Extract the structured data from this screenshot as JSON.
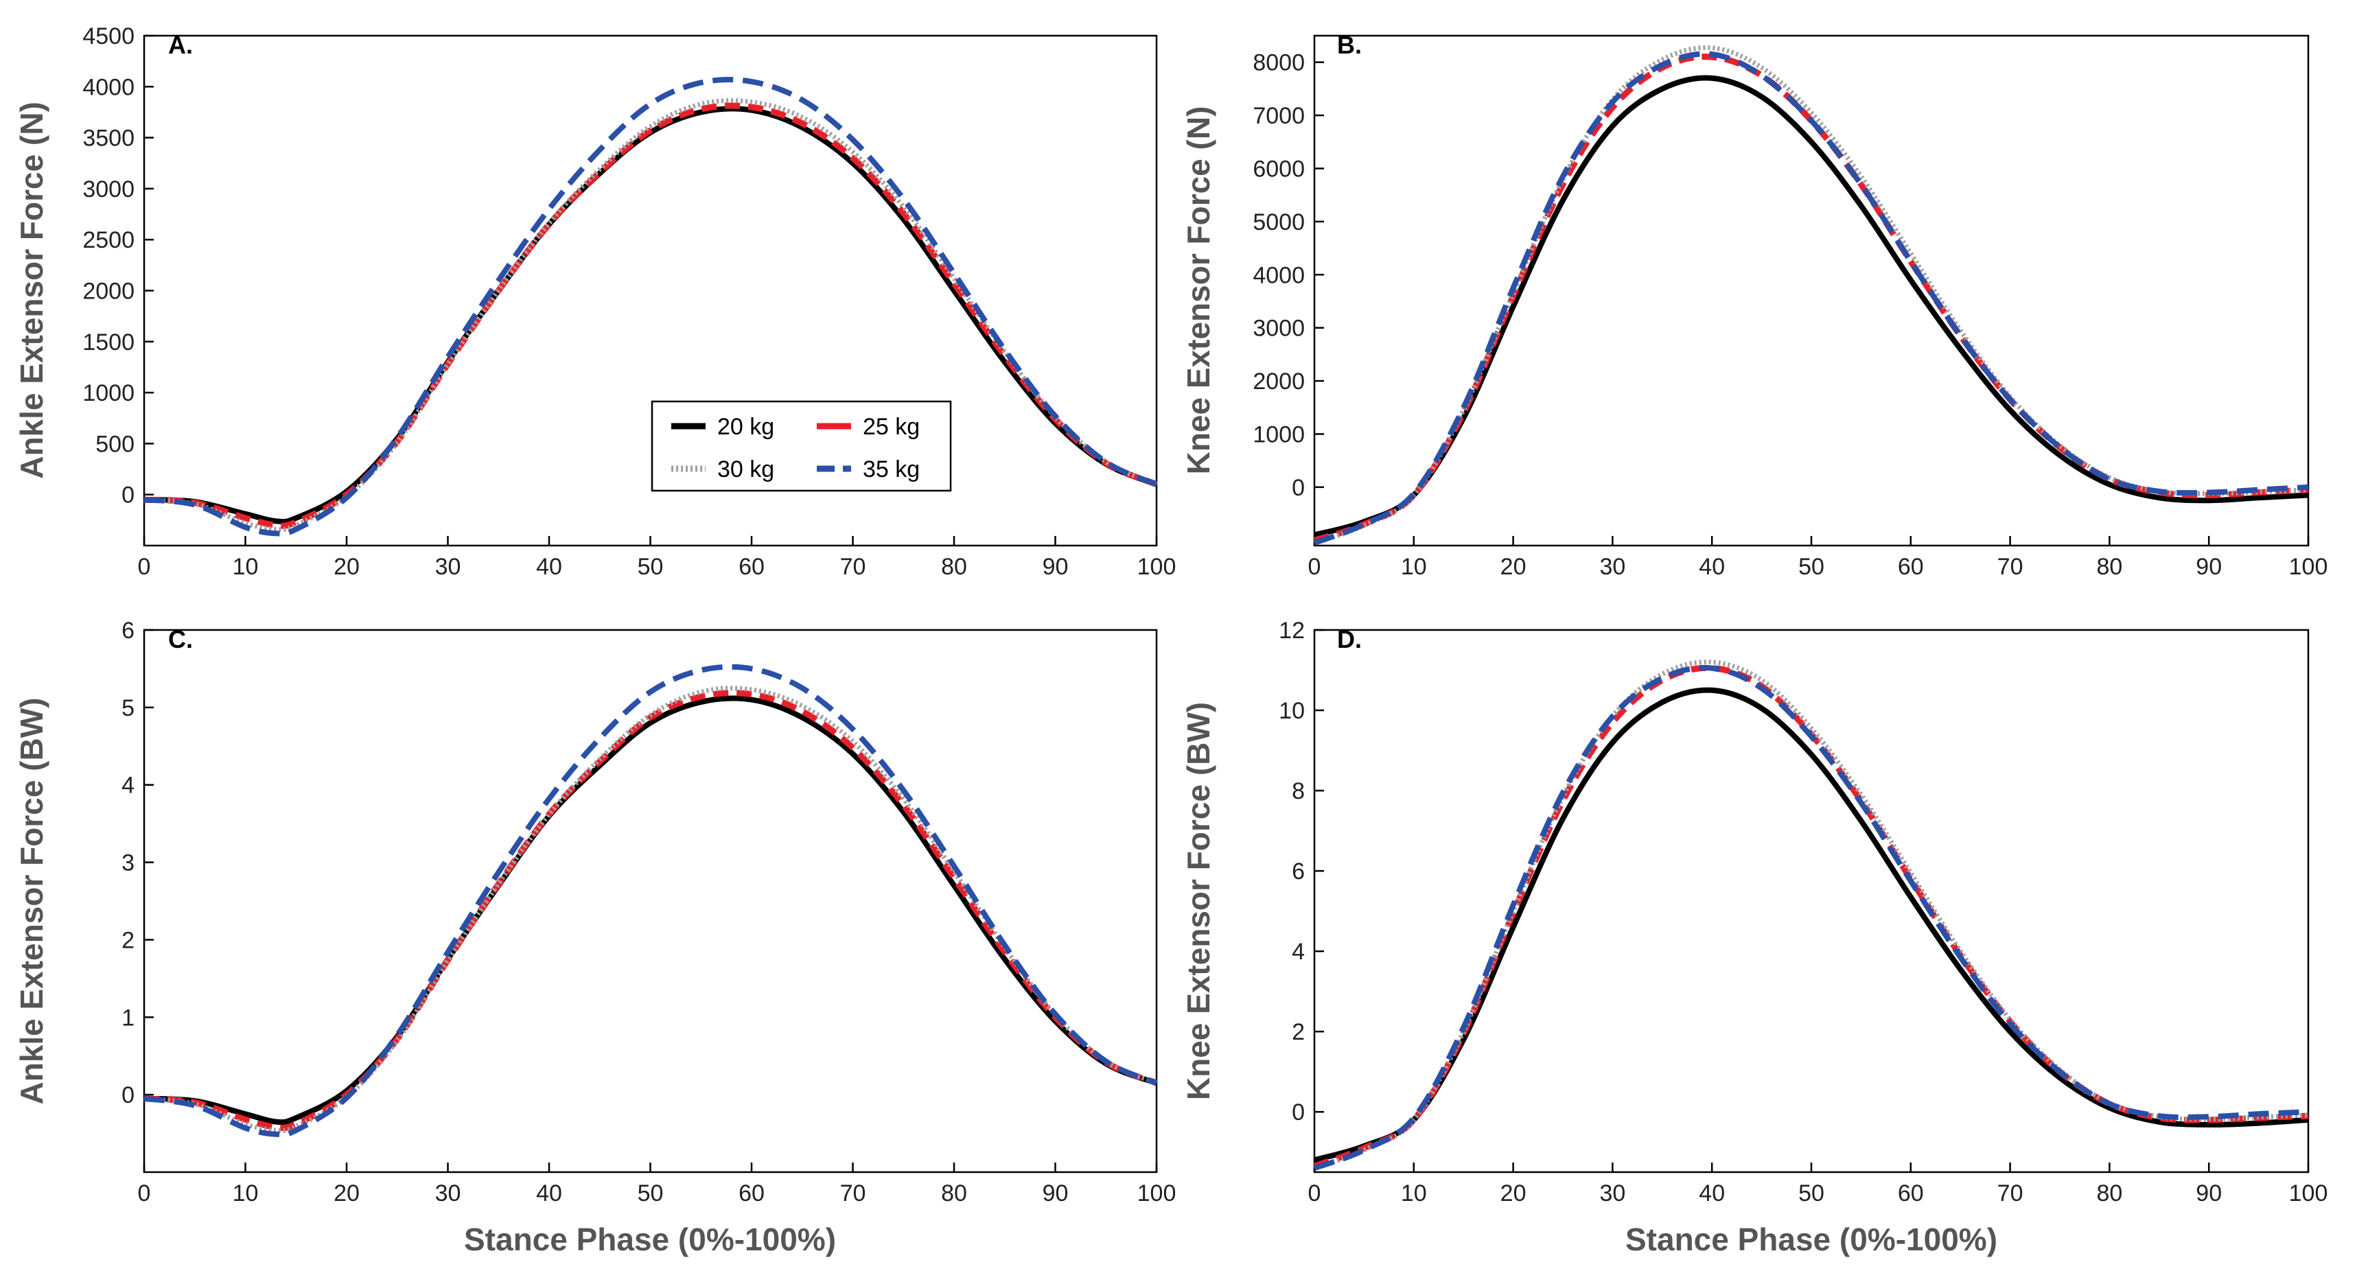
{
  "colors": {
    "20 kg": "#000000",
    "25 kg": "#e8202a",
    "30 kg": "#a0a0a0",
    "35 kg": "#2a50a8"
  },
  "chart_data": [
    {
      "type": "line",
      "panel": "A.",
      "xlabel": "",
      "ylabel": "Ankle Extensor Force (N)",
      "xlim": [
        0,
        100
      ],
      "ylim": [
        -500,
        4500
      ],
      "xticks": [
        0,
        10,
        20,
        30,
        40,
        50,
        60,
        70,
        80,
        90,
        100
      ],
      "yticks": [
        0,
        500,
        1000,
        1500,
        2000,
        2500,
        3000,
        3500,
        4000,
        4500
      ],
      "legend": [
        {
          "label": "20 kg",
          "series": "20 kg"
        },
        {
          "label": "25 kg",
          "series": "25 kg"
        },
        {
          "label": "30 kg",
          "series": "30 kg"
        },
        {
          "label": "35 kg",
          "series": "35 kg"
        }
      ],
      "x": [
        0,
        5,
        10,
        13,
        15,
        20,
        25,
        30,
        35,
        40,
        45,
        50,
        55,
        60,
        65,
        70,
        75,
        80,
        85,
        90,
        95,
        100
      ],
      "series": [
        {
          "name": "20 kg",
          "values": [
            -50,
            -70,
            -190,
            -260,
            -230,
            30,
            550,
            1300,
            2000,
            2650,
            3150,
            3550,
            3750,
            3770,
            3600,
            3250,
            2700,
            2000,
            1300,
            700,
            300,
            100
          ]
        },
        {
          "name": "25 kg",
          "values": [
            -50,
            -80,
            -230,
            -300,
            -270,
            0,
            520,
            1280,
            2000,
            2650,
            3160,
            3570,
            3780,
            3800,
            3640,
            3300,
            2760,
            2070,
            1360,
            740,
            310,
            100
          ]
        },
        {
          "name": "30 kg",
          "values": [
            -50,
            -90,
            -280,
            -340,
            -300,
            -20,
            510,
            1280,
            2000,
            2660,
            3190,
            3610,
            3830,
            3850,
            3700,
            3360,
            2820,
            2120,
            1400,
            760,
            320,
            100
          ]
        },
        {
          "name": "35 kg",
          "values": [
            -50,
            -100,
            -320,
            -380,
            -340,
            -30,
            560,
            1350,
            2100,
            2800,
            3380,
            3830,
            4040,
            4050,
            3870,
            3480,
            2900,
            2170,
            1420,
            770,
            320,
            100
          ]
        }
      ]
    },
    {
      "type": "line",
      "panel": "B.",
      "xlabel": "",
      "ylabel": "Knee Extensor Force (N)",
      "xlim": [
        0,
        100
      ],
      "ylim": [
        -1100,
        8500
      ],
      "xticks": [
        0,
        10,
        20,
        30,
        40,
        50,
        60,
        70,
        80,
        90,
        100
      ],
      "yticks": [
        0,
        1000,
        2000,
        3000,
        4000,
        5000,
        6000,
        7000,
        8000
      ],
      "x": [
        0,
        5,
        10,
        15,
        20,
        25,
        30,
        35,
        40,
        45,
        50,
        55,
        60,
        65,
        70,
        75,
        80,
        85,
        90,
        95,
        100
      ],
      "series": [
        {
          "name": "20 kg",
          "values": [
            -900,
            -650,
            -150,
            1300,
            3400,
            5400,
            6800,
            7500,
            7700,
            7350,
            6500,
            5300,
            3900,
            2600,
            1450,
            600,
            50,
            -200,
            -250,
            -200,
            -150
          ]
        },
        {
          "name": "25 kg",
          "values": [
            -1000,
            -700,
            -150,
            1400,
            3600,
            5700,
            7150,
            7900,
            8100,
            7750,
            6900,
            5700,
            4250,
            2850,
            1650,
            750,
            150,
            -100,
            -150,
            -100,
            -50
          ]
        },
        {
          "name": "30 kg",
          "values": [
            -1050,
            -720,
            -150,
            1450,
            3650,
            5800,
            7300,
            8050,
            8270,
            7900,
            7050,
            5850,
            4400,
            2950,
            1700,
            780,
            180,
            -80,
            -120,
            -90,
            -50
          ]
        },
        {
          "name": "35 kg",
          "values": [
            -1050,
            -700,
            -120,
            1500,
            3750,
            5850,
            7250,
            7950,
            8150,
            7750,
            6900,
            5700,
            4250,
            2850,
            1650,
            750,
            150,
            -80,
            -100,
            -50,
            0
          ]
        }
      ]
    },
    {
      "type": "line",
      "panel": "C.",
      "xlabel": "Stance Phase (0%-100%)",
      "ylabel": "Ankle Extensor Force (BW)",
      "xlim": [
        0,
        100
      ],
      "ylim": [
        -1,
        6
      ],
      "xticks": [
        0,
        10,
        20,
        30,
        40,
        50,
        60,
        70,
        80,
        90,
        100
      ],
      "yticks": [
        0,
        1,
        2,
        3,
        4,
        5,
        6
      ],
      "x": [
        0,
        5,
        10,
        13,
        15,
        20,
        25,
        30,
        35,
        40,
        45,
        50,
        55,
        60,
        65,
        70,
        75,
        80,
        85,
        90,
        95,
        100
      ],
      "series": [
        {
          "name": "20 kg",
          "values": [
            -0.05,
            -0.08,
            -0.25,
            -0.35,
            -0.3,
            0.05,
            0.75,
            1.75,
            2.7,
            3.6,
            4.25,
            4.8,
            5.07,
            5.1,
            4.87,
            4.4,
            3.65,
            2.7,
            1.75,
            0.95,
            0.4,
            0.15
          ]
        },
        {
          "name": "25 kg",
          "values": [
            -0.05,
            -0.1,
            -0.32,
            -0.42,
            -0.38,
            0.0,
            0.72,
            1.74,
            2.72,
            3.62,
            4.3,
            4.87,
            5.14,
            5.17,
            4.95,
            4.48,
            3.74,
            2.8,
            1.84,
            1.0,
            0.42,
            0.15
          ]
        },
        {
          "name": "30 kg",
          "values": [
            -0.05,
            -0.12,
            -0.38,
            -0.46,
            -0.41,
            -0.03,
            0.7,
            1.74,
            2.72,
            3.62,
            4.33,
            4.9,
            5.2,
            5.23,
            5.02,
            4.56,
            3.82,
            2.88,
            1.9,
            1.03,
            0.43,
            0.15
          ]
        },
        {
          "name": "35 kg",
          "values": [
            -0.05,
            -0.14,
            -0.43,
            -0.51,
            -0.46,
            -0.04,
            0.77,
            1.84,
            2.87,
            3.82,
            4.6,
            5.2,
            5.48,
            5.5,
            5.25,
            4.72,
            3.93,
            2.95,
            1.93,
            1.04,
            0.43,
            0.15
          ]
        }
      ]
    },
    {
      "type": "line",
      "panel": "D.",
      "xlabel": "Stance Phase (0%-100%)",
      "ylabel": "Knee Extensor Force (BW)",
      "xlim": [
        0,
        100
      ],
      "ylim": [
        -1.5,
        12
      ],
      "xticks": [
        0,
        10,
        20,
        30,
        40,
        50,
        60,
        70,
        80,
        90,
        100
      ],
      "yticks": [
        0,
        2,
        4,
        6,
        8,
        10,
        12
      ],
      "x": [
        0,
        5,
        10,
        15,
        20,
        25,
        30,
        35,
        40,
        45,
        50,
        55,
        60,
        65,
        70,
        75,
        80,
        85,
        90,
        95,
        100
      ],
      "series": [
        {
          "name": "20 kg",
          "values": [
            -1.2,
            -0.85,
            -0.2,
            1.8,
            4.6,
            7.3,
            9.2,
            10.2,
            10.5,
            10.05,
            8.9,
            7.25,
            5.35,
            3.55,
            2.0,
            0.85,
            0.1,
            -0.25,
            -0.32,
            -0.28,
            -0.2
          ]
        },
        {
          "name": "25 kg",
          "values": [
            -1.35,
            -0.9,
            -0.2,
            1.95,
            4.95,
            7.75,
            9.7,
            10.75,
            11.05,
            10.6,
            9.4,
            7.75,
            5.8,
            3.9,
            2.25,
            1.0,
            0.2,
            -0.15,
            -0.2,
            -0.15,
            -0.1
          ]
        },
        {
          "name": "30 kg",
          "values": [
            -1.4,
            -0.95,
            -0.2,
            2.0,
            5.0,
            7.85,
            9.85,
            10.9,
            11.2,
            10.75,
            9.55,
            7.9,
            5.95,
            4.0,
            2.3,
            1.05,
            0.22,
            -0.12,
            -0.18,
            -0.13,
            -0.08
          ]
        },
        {
          "name": "35 kg",
          "values": [
            -1.4,
            -0.95,
            -0.15,
            2.1,
            5.15,
            7.95,
            9.85,
            10.8,
            11.05,
            10.55,
            9.35,
            7.7,
            5.75,
            3.85,
            2.2,
            1.0,
            0.2,
            -0.1,
            -0.12,
            -0.05,
            0.0
          ]
        }
      ]
    }
  ]
}
